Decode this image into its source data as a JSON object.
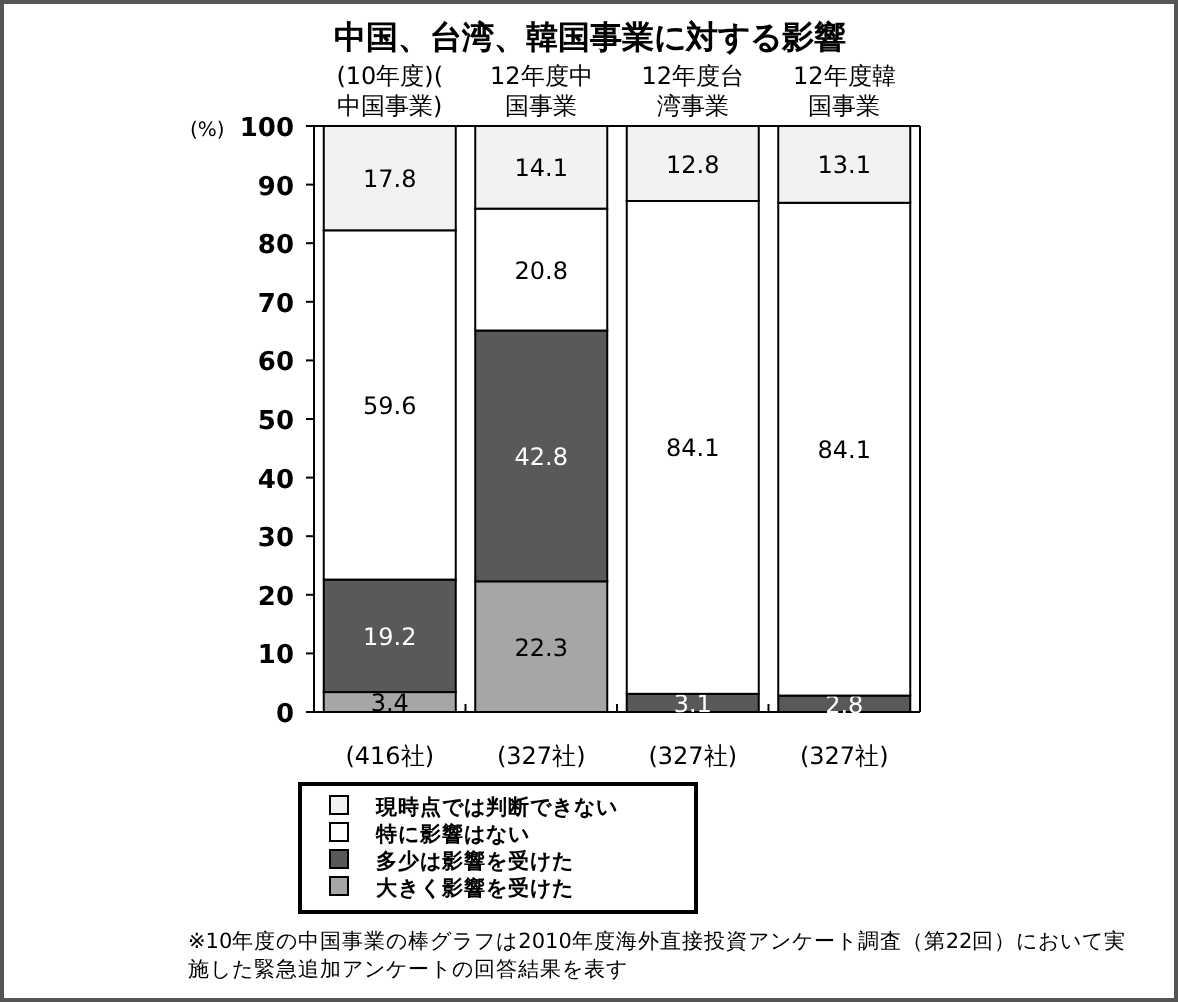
{
  "chart_data": {
    "type": "bar",
    "stacked": true,
    "title": "中国、台湾、韓国事業に対する影響",
    "ylabel": "(%)",
    "categories": [
      "(10年度)(中国事業)",
      "12年度中国事業",
      "12年度台湾事業",
      "12年度韓国事業"
    ],
    "series": [
      {
        "name": "大きく影響を受けた",
        "color": "#a6a6a6",
        "values": [
          3.4,
          22.3,
          null,
          null
        ]
      },
      {
        "name": "多少は影響を受けた",
        "color": "#595959",
        "values": [
          19.2,
          42.8,
          3.1,
          2.8
        ]
      },
      {
        "name": "特に影響はない",
        "color": "#ffffff",
        "values": [
          59.6,
          20.8,
          84.1,
          84.1
        ]
      },
      {
        "name": "現時点では判断できない",
        "color": "#f2f2f2",
        "values": [
          17.8,
          14.1,
          12.8,
          13.1
        ]
      }
    ],
    "ylim": [
      0,
      100
    ],
    "yticks": [
      0,
      10,
      20,
      30,
      40,
      50,
      60,
      70,
      80,
      90,
      100
    ],
    "data_labels": true,
    "legend": "bottom",
    "annotations": [
      "(416社)",
      "(327社)",
      "(327社)",
      "(327社)",
      "※10年度の中国事業の棒グラフは2010年度海外直接投資アンケート調査（第22回）において実施した緊急追加アンケートの回答結果を表す"
    ]
  }
}
